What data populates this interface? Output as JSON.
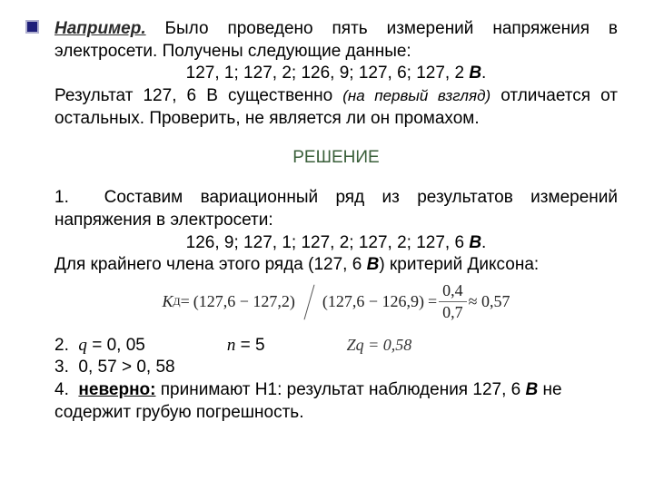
{
  "intro": {
    "head": "Например.",
    "line1a": " Было проведено пять измерений напряжения",
    "line2": "в электросети. Получены следующие данные:",
    "dataset1_prefix": "127, 1; 127, 2; 126, 9; 127, 6; 127, 2 ",
    "unit": "В",
    "period": ".",
    "line3a": "Результат 127, 6 В существенно ",
    "line3b": "(на первый взгляд)",
    "line4": "отличается от остальных. Проверить, не является ли он промахом."
  },
  "solution_label": "РЕШЕНИЕ",
  "step1": {
    "num": "1.",
    "text": "Составим вариационный ряд из результатов измерений напряжения в электросети:",
    "dataset2_prefix": "126, 9; 127, 1; 127, 2; 127, 2; 127, 6 ",
    "unit": "В",
    "period": "."
  },
  "tail": {
    "line_a": "Для крайнего члена этого ряда (127, 6 ",
    "line_b": "В",
    "line_c": ") критерий Диксона:"
  },
  "formula": {
    "K": "К",
    "Ksub": "Д",
    "eq": " = ",
    "num1": "(127,6 − 127,2)",
    "den1": "(127,6 − 126,9)",
    "num2": "0,4",
    "den2": "0,7",
    "approx": " ≈ 0,57"
  },
  "step2": {
    "num": "2.",
    "q": "q",
    "qval": " = 0, 05",
    "n": "n",
    "nval": " = 5",
    "zq": "Zq",
    "zqval": " = 0,58"
  },
  "step3": {
    "num": "3.",
    "text": "0, 57 > 0, 58"
  },
  "step4": {
    "num": "4.",
    "wrong": "неверно:",
    "text_a": " принимают Н1: результат наблюдения 127, 6 ",
    "unit": "В",
    "text_b": " не содержит грубую погрешность."
  },
  "colors": {
    "bullet_fill": "#1f1f7a",
    "bullet_border": "#b0b0d0",
    "solution_color": "#3a5f3a"
  }
}
